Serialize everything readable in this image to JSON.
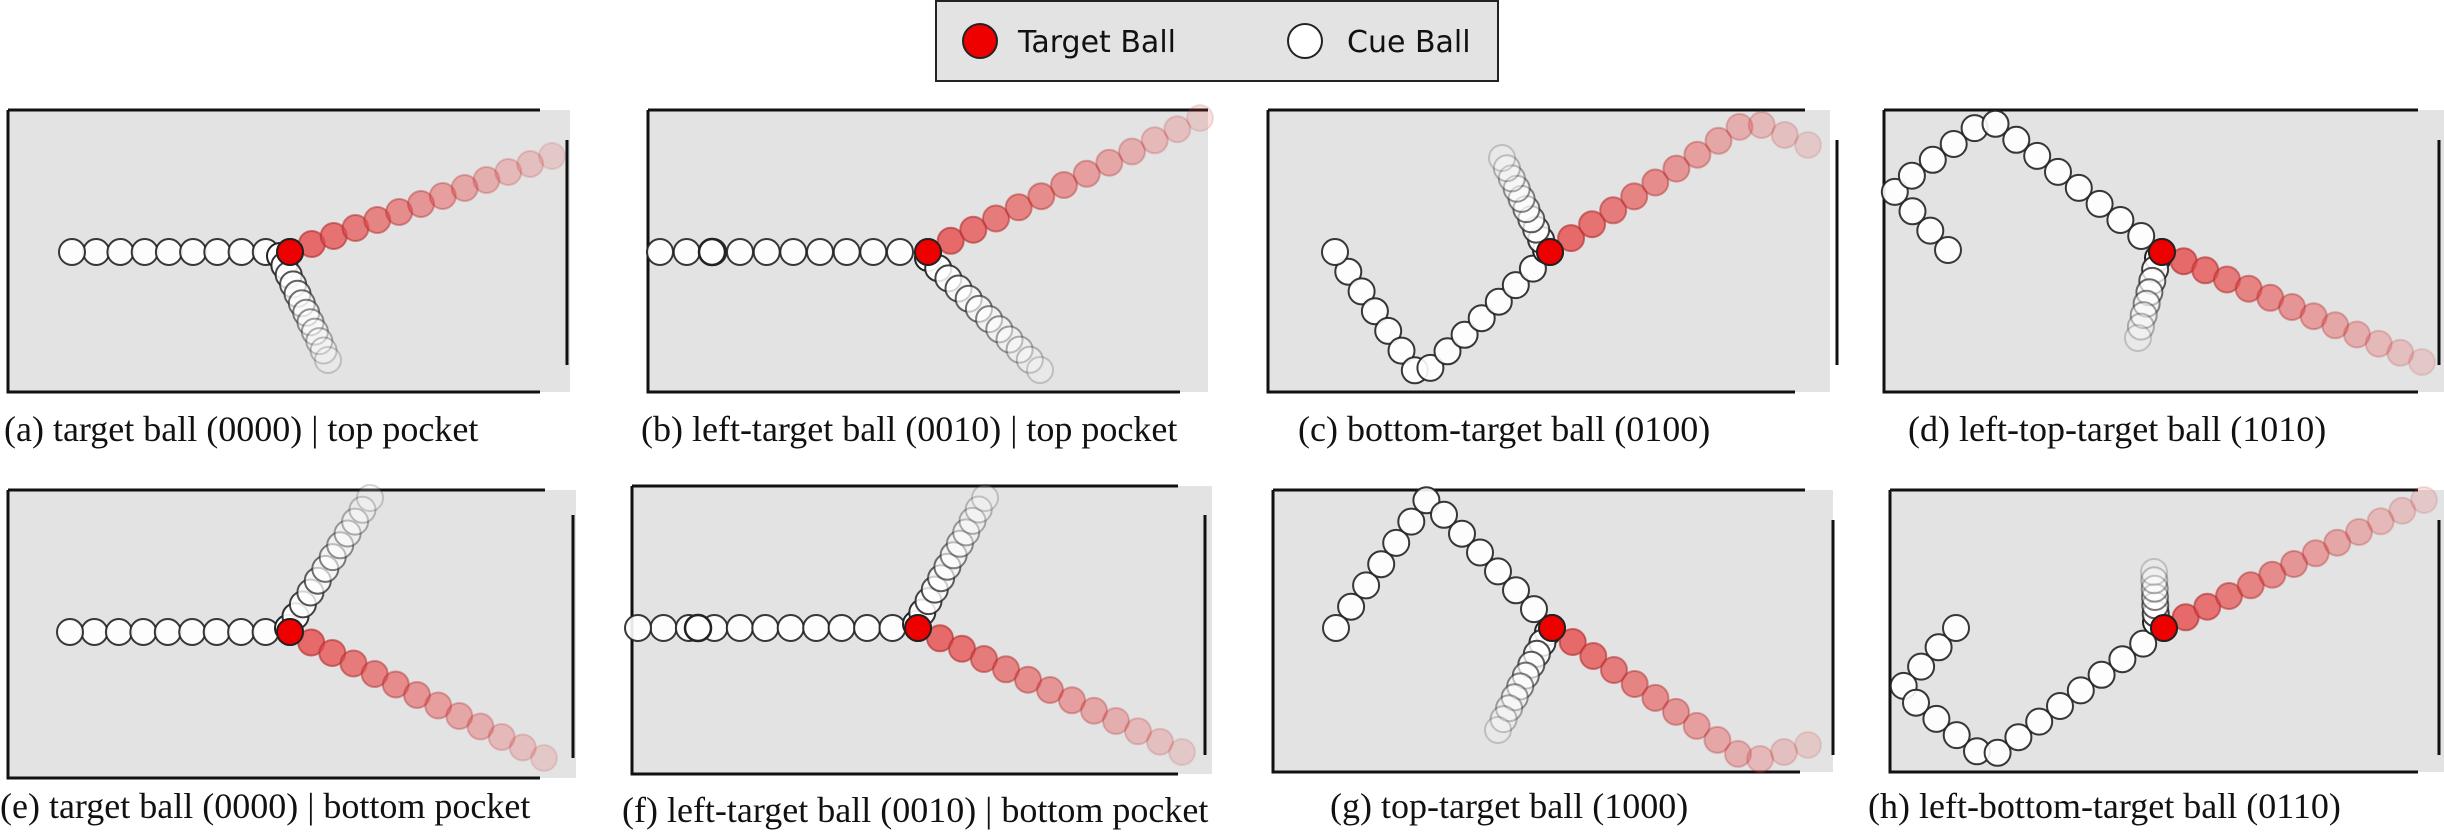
{
  "legend": {
    "target_label": "Target Ball",
    "cue_label": "Cue Ball"
  },
  "colors": {
    "table": "#e3e3e3",
    "target": "#ee0000",
    "target_trail": "#e84a4a",
    "cue": "#ffffff",
    "stroke": "#222222"
  },
  "panels": [
    {
      "caption": "(a) target ball (0000) | top pocket"
    },
    {
      "caption": "(b) left-target ball (0010) | top pocket"
    },
    {
      "caption": "(c) bottom-target ball (0100)"
    },
    {
      "caption": "(d) left-top-target ball (1010)"
    },
    {
      "caption": "(e) target ball (0000) | bottom pocket"
    },
    {
      "caption": "(f) left-target ball (0010) | bottom pocket"
    },
    {
      "caption": "(g) top-target ball (1000)"
    },
    {
      "caption": "(h) left-bottom-target ball (0110)"
    }
  ]
}
